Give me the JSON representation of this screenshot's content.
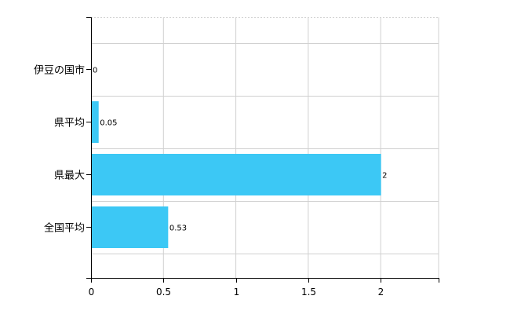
{
  "chart_data": {
    "type": "bar",
    "orientation": "horizontal",
    "categories": [
      "伊豆の国市",
      "県平均",
      "県最大",
      "全国平均"
    ],
    "values": [
      0,
      0.05,
      2,
      0.53
    ],
    "data_labels": [
      "0",
      "0.05",
      "2",
      "0.53"
    ],
    "x_ticks": [
      0,
      0.5,
      1,
      1.5,
      2
    ],
    "x_tick_labels": [
      "0",
      "0.5",
      "1",
      "1.5",
      "2"
    ],
    "xlim": [
      0,
      2.4
    ],
    "grid": true,
    "bar_color": "#3cc8f5",
    "grid_color": "#d0d0d0",
    "axis_color": "#000000"
  }
}
